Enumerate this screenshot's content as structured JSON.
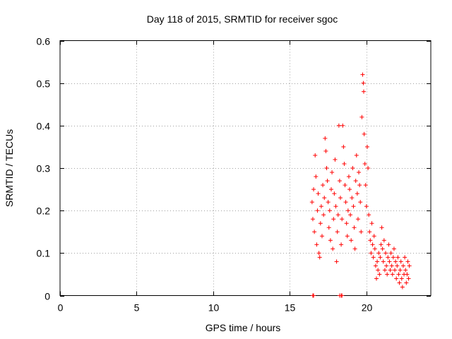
{
  "chart_data": {
    "type": "scatter",
    "title": "Day 118 of 2015, SRMTID for receiver sgoc",
    "xlabel": "GPS time / hours",
    "ylabel": "SRMTID / TECUs",
    "xlim": [
      0,
      24.2
    ],
    "ylim": [
      0,
      0.6
    ],
    "xticks": [
      0,
      5,
      10,
      15,
      20
    ],
    "yticks": [
      0,
      0.1,
      0.2,
      0.3,
      0.4,
      0.5,
      0.6
    ],
    "grid": true,
    "legend": "none",
    "marker": "plus",
    "color": "#ff0000",
    "series": [
      {
        "points": [
          [
            16.45,
            0.22
          ],
          [
            16.5,
            0.18
          ],
          [
            16.55,
            0.25
          ],
          [
            16.6,
            0.15
          ],
          [
            16.65,
            0.33
          ],
          [
            16.7,
            0.28
          ],
          [
            16.75,
            0.12
          ],
          [
            16.8,
            0.2
          ],
          [
            16.85,
            0.24
          ],
          [
            16.9,
            0.1
          ],
          [
            16.95,
            0.09
          ],
          [
            17.0,
            0.17
          ],
          [
            17.05,
            0.21
          ],
          [
            17.1,
            0.14
          ],
          [
            17.15,
            0.26
          ],
          [
            17.2,
            0.19
          ],
          [
            17.25,
            0.23
          ],
          [
            17.3,
            0.37
          ],
          [
            17.35,
            0.34
          ],
          [
            17.4,
            0.3
          ],
          [
            17.45,
            0.27
          ],
          [
            17.5,
            0.22
          ],
          [
            17.55,
            0.16
          ],
          [
            17.6,
            0.2
          ],
          [
            17.65,
            0.13
          ],
          [
            17.7,
            0.25
          ],
          [
            17.75,
            0.29
          ],
          [
            17.8,
            0.11
          ],
          [
            17.85,
            0.18
          ],
          [
            17.9,
            0.24
          ],
          [
            17.95,
            0.32
          ],
          [
            18.0,
            0.21
          ],
          [
            18.05,
            0.08
          ],
          [
            18.1,
            0.15
          ],
          [
            18.15,
            0.19
          ],
          [
            18.2,
            0.4
          ],
          [
            18.25,
            0.27
          ],
          [
            18.3,
            0.23
          ],
          [
            18.35,
            0.12
          ],
          [
            18.4,
            0.18
          ],
          [
            18.45,
            0.4
          ],
          [
            18.5,
            0.35
          ],
          [
            18.55,
            0.31
          ],
          [
            18.6,
            0.26
          ],
          [
            18.65,
            0.22
          ],
          [
            18.7,
            0.17
          ],
          [
            18.75,
            0.14
          ],
          [
            18.8,
            0.2
          ],
          [
            18.85,
            0.28
          ],
          [
            18.9,
            0.25
          ],
          [
            18.95,
            0.19
          ],
          [
            19.0,
            0.13
          ],
          [
            19.05,
            0.23
          ],
          [
            19.1,
            0.3
          ],
          [
            19.15,
            0.21
          ],
          [
            19.2,
            0.16
          ],
          [
            19.25,
            0.11
          ],
          [
            19.3,
            0.27
          ],
          [
            19.35,
            0.33
          ],
          [
            19.4,
            0.24
          ],
          [
            19.45,
            0.18
          ],
          [
            19.5,
            0.29
          ],
          [
            19.55,
            0.26
          ],
          [
            19.6,
            0.22
          ],
          [
            19.65,
            0.15
          ],
          [
            19.7,
            0.42
          ],
          [
            19.75,
            0.52
          ],
          [
            19.8,
            0.5
          ],
          [
            19.82,
            0.48
          ],
          [
            19.85,
            0.38
          ],
          [
            19.9,
            0.31
          ],
          [
            19.95,
            0.26
          ],
          [
            20.0,
            0.21
          ],
          [
            20.05,
            0.35
          ],
          [
            20.1,
            0.3
          ],
          [
            20.15,
            0.19
          ],
          [
            20.2,
            0.15
          ],
          [
            20.25,
            0.13
          ],
          [
            20.3,
            0.1
          ],
          [
            20.35,
            0.17
          ],
          [
            20.4,
            0.12
          ],
          [
            20.45,
            0.09
          ],
          [
            20.5,
            0.14
          ],
          [
            20.55,
            0.11
          ],
          [
            20.6,
            0.07
          ],
          [
            20.65,
            0.04
          ],
          [
            20.7,
            0.08
          ],
          [
            20.75,
            0.06
          ],
          [
            20.8,
            0.1
          ],
          [
            20.85,
            0.05
          ],
          [
            20.9,
            0.09
          ],
          [
            20.95,
            0.12
          ],
          [
            21.0,
            0.16
          ],
          [
            21.05,
            0.11
          ],
          [
            21.1,
            0.08
          ],
          [
            21.15,
            0.13
          ],
          [
            21.2,
            0.06
          ],
          [
            21.25,
            0.1
          ],
          [
            21.3,
            0.07
          ],
          [
            21.35,
            0.05
          ],
          [
            21.4,
            0.09
          ],
          [
            21.45,
            0.12
          ],
          [
            21.5,
            0.08
          ],
          [
            21.55,
            0.06
          ],
          [
            21.6,
            0.1
          ],
          [
            21.65,
            0.07
          ],
          [
            21.7,
            0.05
          ],
          [
            21.75,
            0.09
          ],
          [
            21.8,
            0.11
          ],
          [
            21.85,
            0.06
          ],
          [
            21.9,
            0.08
          ],
          [
            21.95,
            0.04
          ],
          [
            22.0,
            0.07
          ],
          [
            22.05,
            0.09
          ],
          [
            22.1,
            0.05
          ],
          [
            22.15,
            0.03
          ],
          [
            22.2,
            0.06
          ],
          [
            22.25,
            0.08
          ],
          [
            22.3,
            0.04
          ],
          [
            22.35,
            0.02
          ],
          [
            22.4,
            0.07
          ],
          [
            22.45,
            0.05
          ],
          [
            22.5,
            0.09
          ],
          [
            22.55,
            0.06
          ],
          [
            22.6,
            0.03
          ],
          [
            22.65,
            0.05
          ],
          [
            22.7,
            0.08
          ],
          [
            22.75,
            0.04
          ],
          [
            22.8,
            0.07
          ],
          [
            16.5,
            0.0
          ],
          [
            16.55,
            0.0
          ],
          [
            18.25,
            0.0
          ],
          [
            18.35,
            0.0
          ],
          [
            18.4,
            0.0
          ]
        ]
      }
    ]
  }
}
